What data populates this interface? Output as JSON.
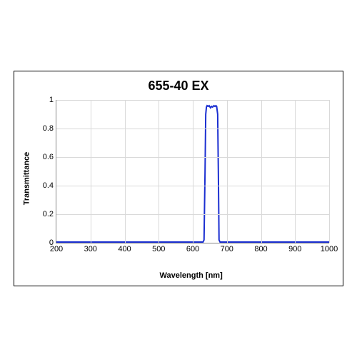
{
  "chart": {
    "type": "line",
    "title": "655-40 EX",
    "title_fontsize": 18,
    "title_fontweight": "bold",
    "xlabel": "Wavelength [nm]",
    "ylabel": "Transmittance",
    "label_fontsize": 11,
    "label_fontweight": "bold",
    "tick_fontsize": 11,
    "xlim": [
      200,
      1000
    ],
    "ylim": [
      0,
      1
    ],
    "xticks": [
      200,
      300,
      400,
      500,
      600,
      700,
      800,
      900,
      1000
    ],
    "yticks": [
      0,
      0.2,
      0.4,
      0.6,
      0.8,
      1
    ],
    "grid_color": "#d9d9d9",
    "axis_color": "#888888",
    "border_color": "#000000",
    "background_color": "#ffffff",
    "line_color": "#1b2fd1",
    "line_width": 2,
    "series": {
      "x": [
        200,
        630,
        633,
        636,
        638,
        640,
        642,
        645,
        648,
        652,
        655,
        658,
        662,
        665,
        668,
        670,
        673,
        675,
        677,
        680,
        1000
      ],
      "y": [
        0.005,
        0.005,
        0.02,
        0.5,
        0.9,
        0.95,
        0.96,
        0.955,
        0.96,
        0.945,
        0.955,
        0.95,
        0.96,
        0.955,
        0.96,
        0.955,
        0.9,
        0.5,
        0.02,
        0.005,
        0.005
      ]
    }
  }
}
